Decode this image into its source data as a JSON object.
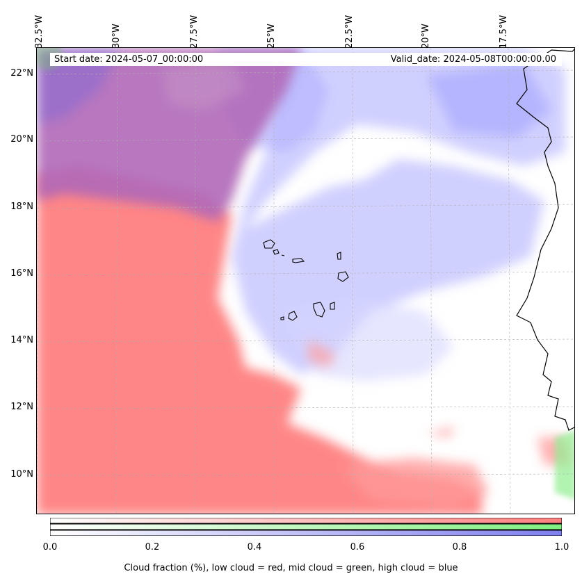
{
  "header": {
    "start_date": "Start date: 2024-05-07_00:00:00",
    "valid_date": "Valid_date: 2024-05-08T00:00:00.00"
  },
  "longitude_labels": [
    "32.5°W",
    "30°W",
    "27.5°W",
    "25°W",
    "22.5°W",
    "20°W",
    "17.5°W"
  ],
  "latitude_labels": [
    "22°N",
    "20°N",
    "18°N",
    "16°N",
    "14°N",
    "12°N",
    "10°N"
  ],
  "colorbar": {
    "ticks": [
      "0.0",
      "0.2",
      "0.4",
      "0.6",
      "0.8",
      "1.0"
    ],
    "title": "Cloud fraction (%), low cloud = red, mid cloud = green, high cloud = blue",
    "colors": {
      "low": "#ff7f7f",
      "mid": "#7fef7f",
      "high": "#7f7fef"
    }
  },
  "map_colors": {
    "low_cloud": "#ff8080",
    "high_cloud": "#c8c8ff",
    "mixed_cloud": "#b06ab8",
    "clear": "#ffffff",
    "coastline": "#000000"
  }
}
